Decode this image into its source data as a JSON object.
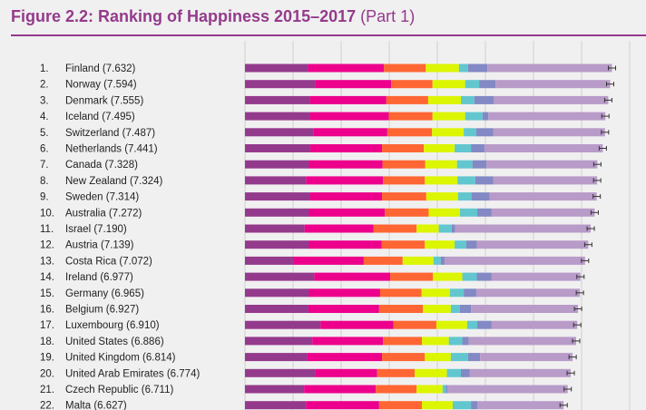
{
  "chart_data": {
    "type": "bar",
    "orientation": "horizontal",
    "stacked": true,
    "title": "Figure 2.2: Ranking of Happiness 2015–2017",
    "subtitle": "(Part 1)",
    "xlim": [
      0,
      8
    ],
    "grid": true,
    "colors": [
      "#943a8c",
      "#ec008c",
      "#ff6633",
      "#dcf500",
      "#62c6cf",
      "#8289c4",
      "#b89bc8"
    ],
    "error_bar_color": "#333333",
    "rows": [
      {
        "rank": "1.",
        "label": "Finland (7.632)",
        "score": 7.632,
        "segments": [
          1.31,
          1.58,
          0.87,
          0.69,
          0.19,
          0.4,
          2.592
        ]
      },
      {
        "rank": "2.",
        "label": "Norway (7.594)",
        "score": 7.594,
        "segments": [
          1.46,
          1.58,
          0.86,
          0.68,
          0.29,
          0.34,
          2.384
        ]
      },
      {
        "rank": "3.",
        "label": "Denmark (7.555)",
        "score": 7.555,
        "segments": [
          1.35,
          1.59,
          0.87,
          0.68,
          0.28,
          0.4,
          2.385
        ]
      },
      {
        "rank": "4.",
        "label": "Iceland (7.495)",
        "score": 7.495,
        "segments": [
          1.35,
          1.64,
          0.91,
          0.68,
          0.36,
          0.12,
          2.435
        ]
      },
      {
        "rank": "5.",
        "label": "Switzerland (7.487)",
        "score": 7.487,
        "segments": [
          1.42,
          1.54,
          0.93,
          0.66,
          0.26,
          0.35,
          2.327
        ]
      },
      {
        "rank": "6.",
        "label": "Netherlands (7.441)",
        "score": 7.441,
        "segments": [
          1.36,
          1.49,
          0.87,
          0.64,
          0.34,
          0.28,
          2.461
        ]
      },
      {
        "rank": "7.",
        "label": "Canada (7.328)",
        "score": 7.328,
        "segments": [
          1.33,
          1.53,
          0.89,
          0.66,
          0.32,
          0.29,
          2.308
        ]
      },
      {
        "rank": "8.",
        "label": "New Zealand (7.324)",
        "score": 7.324,
        "segments": [
          1.27,
          1.6,
          0.87,
          0.68,
          0.37,
          0.37,
          2.164
        ]
      },
      {
        "rank": "9.",
        "label": "Sweden (7.314)",
        "score": 7.314,
        "segments": [
          1.35,
          1.5,
          0.92,
          0.66,
          0.28,
          0.38,
          2.224
        ]
      },
      {
        "rank": "10.",
        "label": "Australia (7.272)",
        "score": 7.272,
        "segments": [
          1.33,
          1.58,
          0.91,
          0.65,
          0.36,
          0.3,
          2.142
        ]
      },
      {
        "rank": "11.",
        "label": "Israel (7.190)",
        "score": 7.19,
        "segments": [
          1.24,
          1.43,
          0.9,
          0.46,
          0.27,
          0.07,
          2.82
        ]
      },
      {
        "rank": "12.",
        "label": "Austria (7.139)",
        "score": 7.139,
        "segments": [
          1.33,
          1.51,
          0.9,
          0.62,
          0.24,
          0.22,
          2.319
        ]
      },
      {
        "rank": "13.",
        "label": "Costa Rica (7.072)",
        "score": 7.072,
        "segments": [
          1.01,
          1.46,
          0.81,
          0.64,
          0.15,
          0.08,
          2.922
        ]
      },
      {
        "rank": "14.",
        "label": "Ireland (6.977)",
        "score": 6.977,
        "segments": [
          1.44,
          1.58,
          0.89,
          0.61,
          0.3,
          0.31,
          1.847
        ]
      },
      {
        "rank": "15.",
        "label": "Germany (6.965)",
        "score": 6.965,
        "segments": [
          1.33,
          1.48,
          0.86,
          0.59,
          0.29,
          0.26,
          2.155
        ]
      },
      {
        "rank": "16.",
        "label": "Belgium (6.927)",
        "score": 6.927,
        "segments": [
          1.32,
          1.47,
          0.91,
          0.58,
          0.19,
          0.23,
          2.227
        ]
      },
      {
        "rank": "17.",
        "label": "Luxembourg (6.910)",
        "score": 6.91,
        "segments": [
          1.57,
          1.52,
          0.89,
          0.64,
          0.21,
          0.3,
          1.78
        ]
      },
      {
        "rank": "18.",
        "label": "United States (6.886)",
        "score": 6.886,
        "segments": [
          1.4,
          1.47,
          0.81,
          0.56,
          0.28,
          0.13,
          2.236
        ]
      },
      {
        "rank": "19.",
        "label": "United Kingdom (6.814)",
        "score": 6.814,
        "segments": [
          1.29,
          1.56,
          0.89,
          0.54,
          0.36,
          0.25,
          1.924
        ]
      },
      {
        "rank": "20.",
        "label": "United Arab Emirates (6.774)",
        "score": 6.774,
        "segments": [
          1.46,
          1.29,
          0.78,
          0.67,
          0.29,
          0.18,
          2.104
        ]
      },
      {
        "rank": "21.",
        "label": "Czech Republic (6.711)",
        "score": 6.711,
        "segments": [
          1.23,
          1.49,
          0.85,
          0.54,
          0.07,
          0.03,
          2.501
        ]
      },
      {
        "rank": "22.",
        "label": "Malta (6.627)",
        "score": 6.627,
        "segments": [
          1.27,
          1.52,
          0.89,
          0.64,
          0.38,
          0.13,
          1.797
        ]
      }
    ]
  }
}
